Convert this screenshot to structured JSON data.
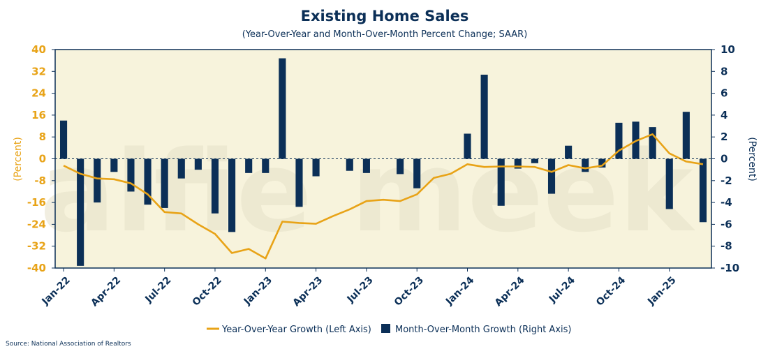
{
  "colors": {
    "plot_bg": "#f7f3dc",
    "bar": "#0b2f57",
    "line": "#e8a317",
    "title": "#0b2f57",
    "left_axis": "#e8a317",
    "right_axis": "#0b2f57"
  },
  "watermark": "alfie meek",
  "source": "Source: National Association of Realtors",
  "chart_data": {
    "type": "bar",
    "title": "Existing Home Sales",
    "subtitle": "(Year-Over-Year and Month-Over-Month Percent Change; SAAR)",
    "ylabel_left": "(Percent)",
    "ylabel_right": "(Percent)",
    "ylim_left": [
      -40,
      40
    ],
    "ylim_right": [
      -10,
      10
    ],
    "yticks_left": [
      "40",
      "32",
      "24",
      "16",
      "8",
      "0",
      "-8",
      "-16",
      "-24",
      "-32",
      "-40"
    ],
    "yticks_right": [
      "10",
      "8",
      "6",
      "4",
      "2",
      "0",
      "-2",
      "-4",
      "-6",
      "-8",
      "-10"
    ],
    "x": [
      "2022-01",
      "2022-02",
      "2022-03",
      "2022-04",
      "2022-05",
      "2022-06",
      "2022-07",
      "2022-08",
      "2022-09",
      "2022-10",
      "2022-11",
      "2022-12",
      "2023-01",
      "2023-02",
      "2023-03",
      "2023-04",
      "2023-05",
      "2023-06",
      "2023-07",
      "2023-08",
      "2023-09",
      "2023-10",
      "2023-11",
      "2023-12",
      "2024-01",
      "2024-02",
      "2024-03",
      "2024-04",
      "2024-05",
      "2024-06",
      "2024-07",
      "2024-08",
      "2024-09",
      "2024-10",
      "2024-11",
      "2024-12",
      "2025-01",
      "2025-02",
      "2025-03"
    ],
    "x_tick_labels": [
      "Jan-22",
      "Apr-22",
      "Jul-22",
      "Oct-22",
      "Jan-23",
      "Apr-23",
      "Jul-23",
      "Oct-23",
      "Jan-24",
      "Apr-24",
      "Jul-24",
      "Oct-24",
      "Jan-25"
    ],
    "x_tick_positions": [
      0,
      3,
      6,
      9,
      12,
      15,
      18,
      21,
      24,
      27,
      30,
      33,
      36
    ],
    "series": [
      {
        "name": "Year-Over-Year Growth (Left Axis)",
        "axis": "left",
        "kind": "line",
        "values": [
          -2.5,
          -5.5,
          -7.2,
          -7.5,
          -9.0,
          -13.0,
          -19.5,
          -20.0,
          -24.0,
          -27.5,
          -34.5,
          -33.0,
          -36.5,
          -23.0,
          -23.5,
          -23.8,
          -21.0,
          -18.5,
          -15.5,
          -15.0,
          -15.5,
          -13.0,
          -7.0,
          -5.5,
          -2.0,
          -3.0,
          -2.8,
          -2.8,
          -3.0,
          -4.8,
          -2.3,
          -3.5,
          -2.5,
          3.0,
          6.5,
          9.0,
          2.0,
          -1.0,
          -2.0
        ]
      },
      {
        "name": "Month-Over-Month Growth (Right Axis)",
        "axis": "right",
        "kind": "bar",
        "values": [
          3.5,
          -9.8,
          -4.0,
          -1.2,
          -3.0,
          -4.2,
          -4.5,
          -1.8,
          -1.0,
          -5.0,
          -6.7,
          -1.3,
          -1.3,
          9.2,
          -4.4,
          -1.6,
          0.0,
          -1.1,
          -1.3,
          0.0,
          -1.4,
          -2.7,
          0.0,
          0.0,
          2.3,
          7.7,
          -4.3,
          -0.9,
          -0.4,
          -3.2,
          1.2,
          -1.2,
          -0.8,
          3.3,
          3.4,
          2.9,
          -4.6,
          4.3,
          -5.8
        ]
      }
    ],
    "grid": false,
    "legend_position": "bottom"
  }
}
